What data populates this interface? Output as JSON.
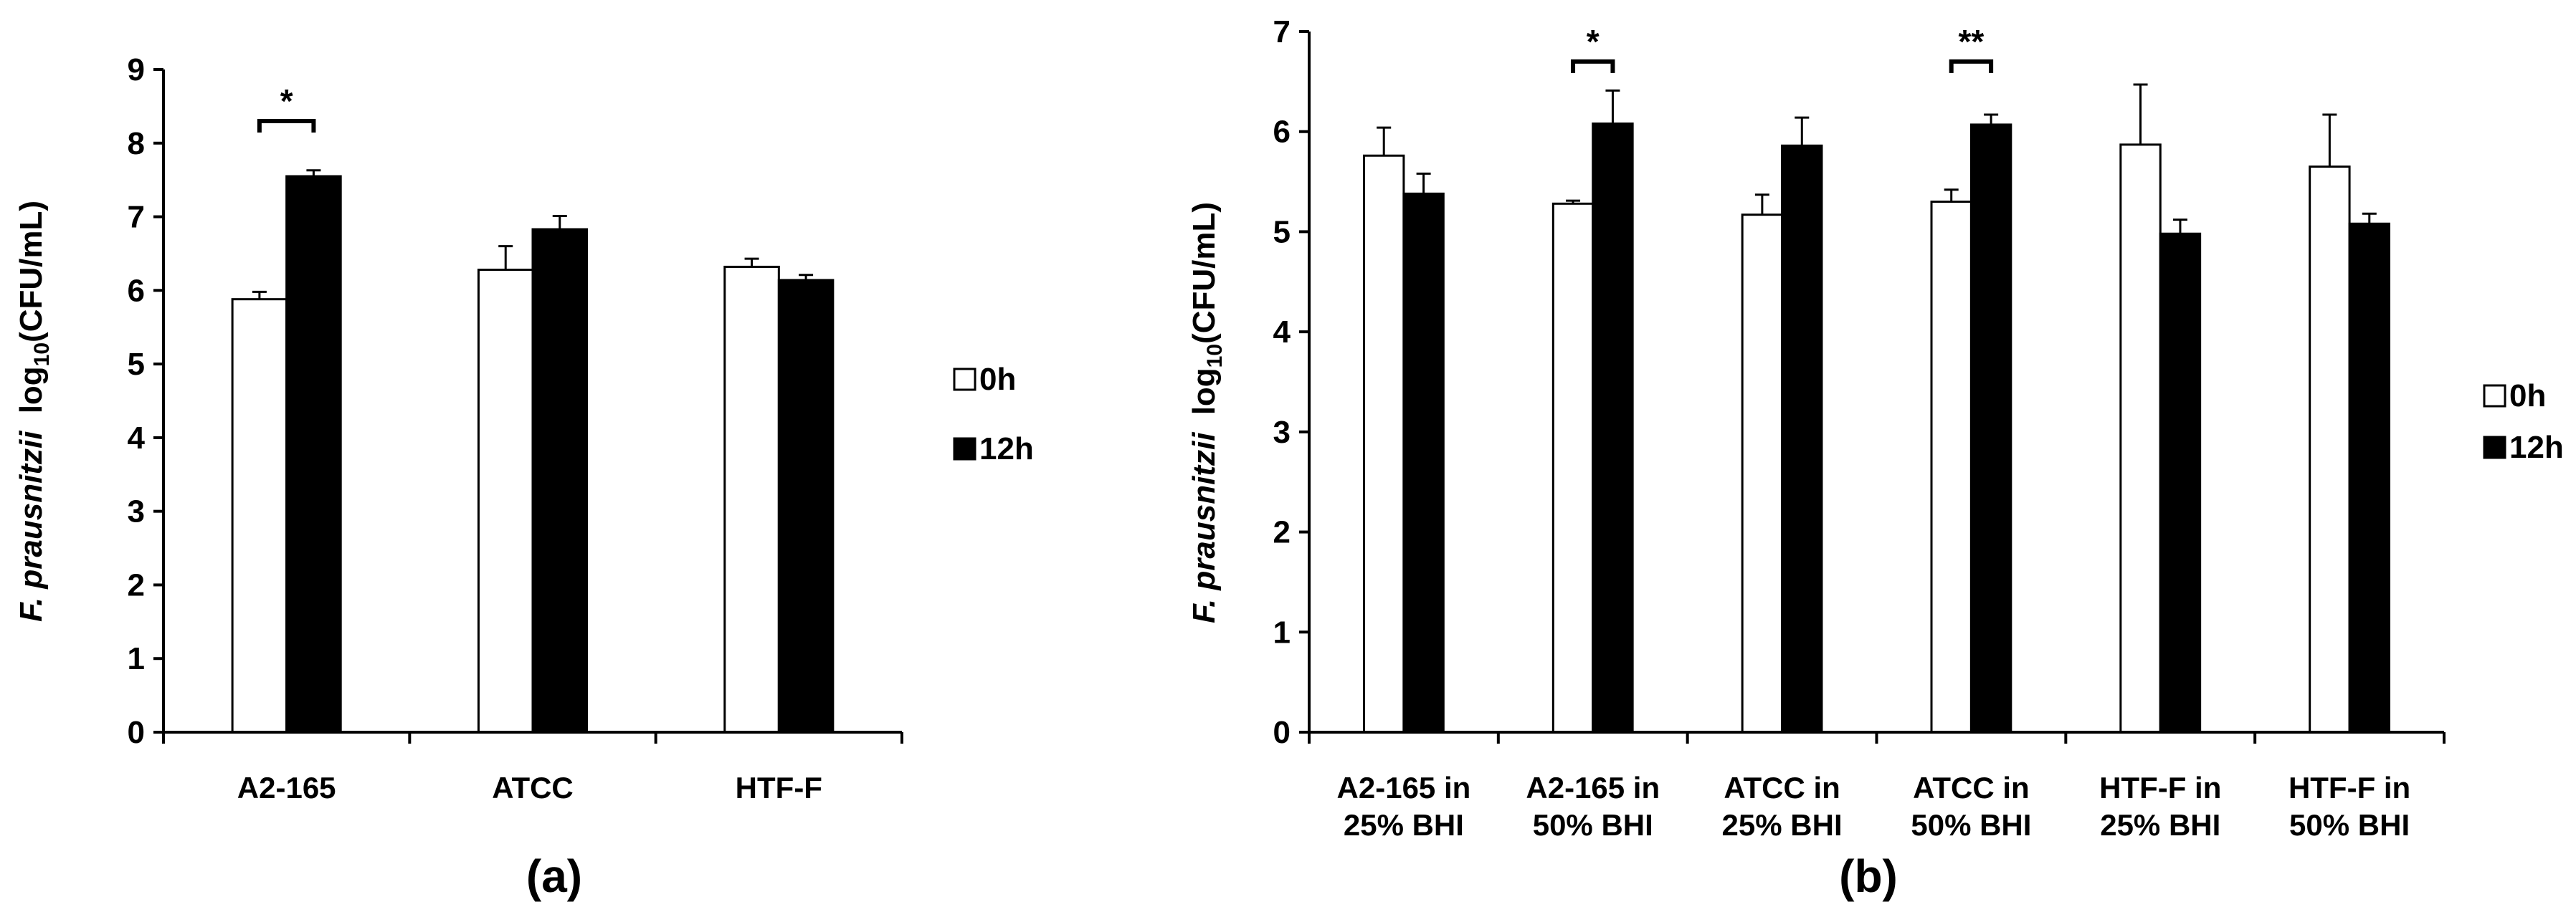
{
  "chart_data": [
    {
      "type": "bar",
      "panel_label": "(a)",
      "ylabel": {
        "species": "F. prausnitzii",
        "log": "log",
        "sub": "10",
        "unit": "(CFU/mL)"
      },
      "ylim": [
        0,
        9
      ],
      "yticks": [
        "0",
        "1",
        "2",
        "3",
        "4",
        "5",
        "6",
        "7",
        "8",
        "9"
      ],
      "categories": [
        [
          "A2-165"
        ],
        [
          "ATCC"
        ],
        [
          "HTF-F"
        ]
      ],
      "series": [
        {
          "name": "0h",
          "color": "#ffffff",
          "values": [
            5.88,
            6.28,
            6.32
          ],
          "errors": [
            0.1,
            0.32,
            0.11
          ]
        },
        {
          "name": "12h",
          "color": "#000000",
          "values": [
            7.55,
            6.83,
            6.14
          ],
          "errors": [
            0.08,
            0.18,
            0.07
          ]
        }
      ],
      "significance": [
        {
          "category_index": 0,
          "label": "*",
          "level": 8.3
        }
      ],
      "legend": "right"
    },
    {
      "type": "bar",
      "panel_label": "(b)",
      "ylabel": {
        "species": "F. prausnitzii",
        "log": "log",
        "sub": "10",
        "unit": "(CFU/mL)"
      },
      "ylim": [
        0,
        7
      ],
      "yticks": [
        "0",
        "1",
        "2",
        "3",
        "4",
        "5",
        "6",
        "7"
      ],
      "categories": [
        [
          "A2-165 in",
          "25% BHI"
        ],
        [
          "A2-165 in",
          "50% BHI"
        ],
        [
          "ATCC in",
          "25% BHI"
        ],
        [
          "ATCC in",
          "50% BHI"
        ],
        [
          "HTF-F in",
          "25% BHI"
        ],
        [
          "HTF-F in",
          "50% BHI"
        ]
      ],
      "series": [
        {
          "name": "0h",
          "color": "#ffffff",
          "values": [
            5.76,
            5.28,
            5.17,
            5.3,
            5.87,
            5.65
          ],
          "errors": [
            0.28,
            0.03,
            0.2,
            0.12,
            0.6,
            0.52
          ]
        },
        {
          "name": "12h",
          "color": "#000000",
          "values": [
            5.38,
            6.08,
            5.86,
            6.07,
            4.98,
            5.08
          ],
          "errors": [
            0.2,
            0.33,
            0.28,
            0.1,
            0.14,
            0.1
          ]
        }
      ],
      "significance": [
        {
          "category_index": 1,
          "label": "*",
          "level": 6.7
        },
        {
          "category_index": 3,
          "label": "**",
          "level": 6.7
        }
      ],
      "legend": "right"
    }
  ]
}
